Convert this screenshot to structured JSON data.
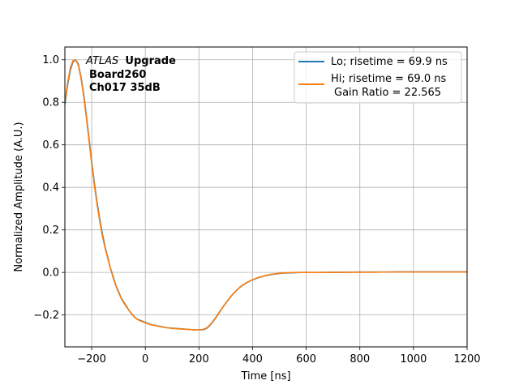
{
  "chart_data": {
    "type": "line",
    "xlabel": "Time [ns]",
    "ylabel": "Normalized Amplitude (A.U.)",
    "xlim": [
      -300,
      1200
    ],
    "ylim": [
      -0.35,
      1.06
    ],
    "xticks": [
      -200,
      0,
      200,
      400,
      600,
      800,
      1000,
      1200
    ],
    "xtick_labels": [
      "−200",
      "0",
      "200",
      "400",
      "600",
      "800",
      "1000",
      "1200"
    ],
    "yticks": [
      -0.2,
      0.0,
      0.2,
      0.4,
      0.6,
      0.8,
      1.0
    ],
    "ytick_labels": [
      "−0.2",
      "0.0",
      "0.2",
      "0.4",
      "0.6",
      "0.8",
      "1.0"
    ],
    "grid": true,
    "legend_position": "top-right",
    "annotation": {
      "atlas": "ATLAS",
      "upgrade": "Upgrade",
      "board": "Board260",
      "channel": "Ch017 35dB"
    },
    "series": [
      {
        "name": "Lo; risetime = 69.9 ns",
        "color": "#1f77b4",
        "x": [
          -300,
          -290,
          -280,
          -270,
          -260,
          -250,
          -240,
          -230,
          -220,
          -210,
          -200,
          -190,
          -180,
          -170,
          -160,
          -150,
          -140,
          -130,
          -120,
          -110,
          -100,
          -90,
          -80,
          -70,
          -60,
          -50,
          -40,
          -30,
          -20,
          -10,
          0,
          20,
          40,
          60,
          80,
          100,
          120,
          140,
          160,
          180,
          200,
          210,
          220,
          230,
          240,
          250,
          260,
          270,
          280,
          290,
          300,
          310,
          320,
          330,
          340,
          350,
          360,
          380,
          400,
          420,
          440,
          460,
          480,
          500,
          520,
          540,
          560,
          580,
          600,
          650,
          700,
          750,
          800,
          850,
          900,
          950,
          1000,
          1050,
          1100,
          1150,
          1200
        ],
        "y": [
          0.79,
          0.88,
          0.95,
          0.99,
          1.0,
          0.98,
          0.92,
          0.84,
          0.74,
          0.63,
          0.52,
          0.42,
          0.33,
          0.25,
          0.18,
          0.12,
          0.07,
          0.02,
          -0.02,
          -0.06,
          -0.09,
          -0.12,
          -0.14,
          -0.16,
          -0.18,
          -0.195,
          -0.21,
          -0.22,
          -0.225,
          -0.23,
          -0.235,
          -0.245,
          -0.25,
          -0.255,
          -0.26,
          -0.262,
          -0.264,
          -0.266,
          -0.268,
          -0.27,
          -0.27,
          -0.27,
          -0.268,
          -0.262,
          -0.25,
          -0.235,
          -0.218,
          -0.2,
          -0.18,
          -0.162,
          -0.145,
          -0.128,
          -0.112,
          -0.098,
          -0.085,
          -0.073,
          -0.063,
          -0.047,
          -0.035,
          -0.025,
          -0.018,
          -0.012,
          -0.008,
          -0.005,
          -0.003,
          -0.002,
          -0.001,
          0.0,
          0.0,
          0.0,
          0.001,
          0.001,
          0.002,
          0.002,
          0.002,
          0.003,
          0.003,
          0.003,
          0.003,
          0.003,
          0.003
        ]
      },
      {
        "name": "Hi; risetime = 69.0 ns",
        "name_line2": "Gain Ratio = 22.565",
        "color": "#ff7f0e",
        "x": [
          -300,
          -290,
          -280,
          -270,
          -260,
          -250,
          -240,
          -230,
          -220,
          -210,
          -200,
          -190,
          -180,
          -170,
          -160,
          -150,
          -140,
          -130,
          -120,
          -110,
          -100,
          -90,
          -80,
          -70,
          -60,
          -50,
          -40,
          -30,
          -20,
          -10,
          0,
          20,
          40,
          60,
          80,
          100,
          120,
          140,
          160,
          180,
          200,
          210,
          220,
          230,
          240,
          250,
          260,
          270,
          280,
          290,
          300,
          310,
          320,
          330,
          340,
          350,
          360,
          380,
          400,
          420,
          440,
          460,
          480,
          500,
          520,
          540,
          560,
          580,
          600,
          650,
          700,
          750,
          800,
          850,
          900,
          950,
          1000,
          1050,
          1100,
          1150,
          1200
        ],
        "y": [
          0.8,
          0.89,
          0.96,
          0.995,
          1.0,
          0.975,
          0.915,
          0.83,
          0.73,
          0.62,
          0.51,
          0.41,
          0.32,
          0.24,
          0.17,
          0.115,
          0.065,
          0.02,
          -0.025,
          -0.062,
          -0.094,
          -0.122,
          -0.144,
          -0.163,
          -0.18,
          -0.197,
          -0.211,
          -0.221,
          -0.227,
          -0.232,
          -0.237,
          -0.246,
          -0.251,
          -0.256,
          -0.26,
          -0.263,
          -0.265,
          -0.267,
          -0.268,
          -0.27,
          -0.27,
          -0.269,
          -0.266,
          -0.26,
          -0.248,
          -0.233,
          -0.216,
          -0.198,
          -0.179,
          -0.161,
          -0.144,
          -0.127,
          -0.111,
          -0.097,
          -0.084,
          -0.072,
          -0.062,
          -0.046,
          -0.034,
          -0.024,
          -0.017,
          -0.011,
          -0.007,
          -0.004,
          -0.002,
          -0.001,
          0.0,
          0.0,
          0.0,
          0.0,
          0.0,
          0.001,
          0.001,
          0.001,
          0.002,
          0.002,
          0.002,
          0.002,
          0.002,
          0.002,
          0.002
        ]
      }
    ]
  }
}
